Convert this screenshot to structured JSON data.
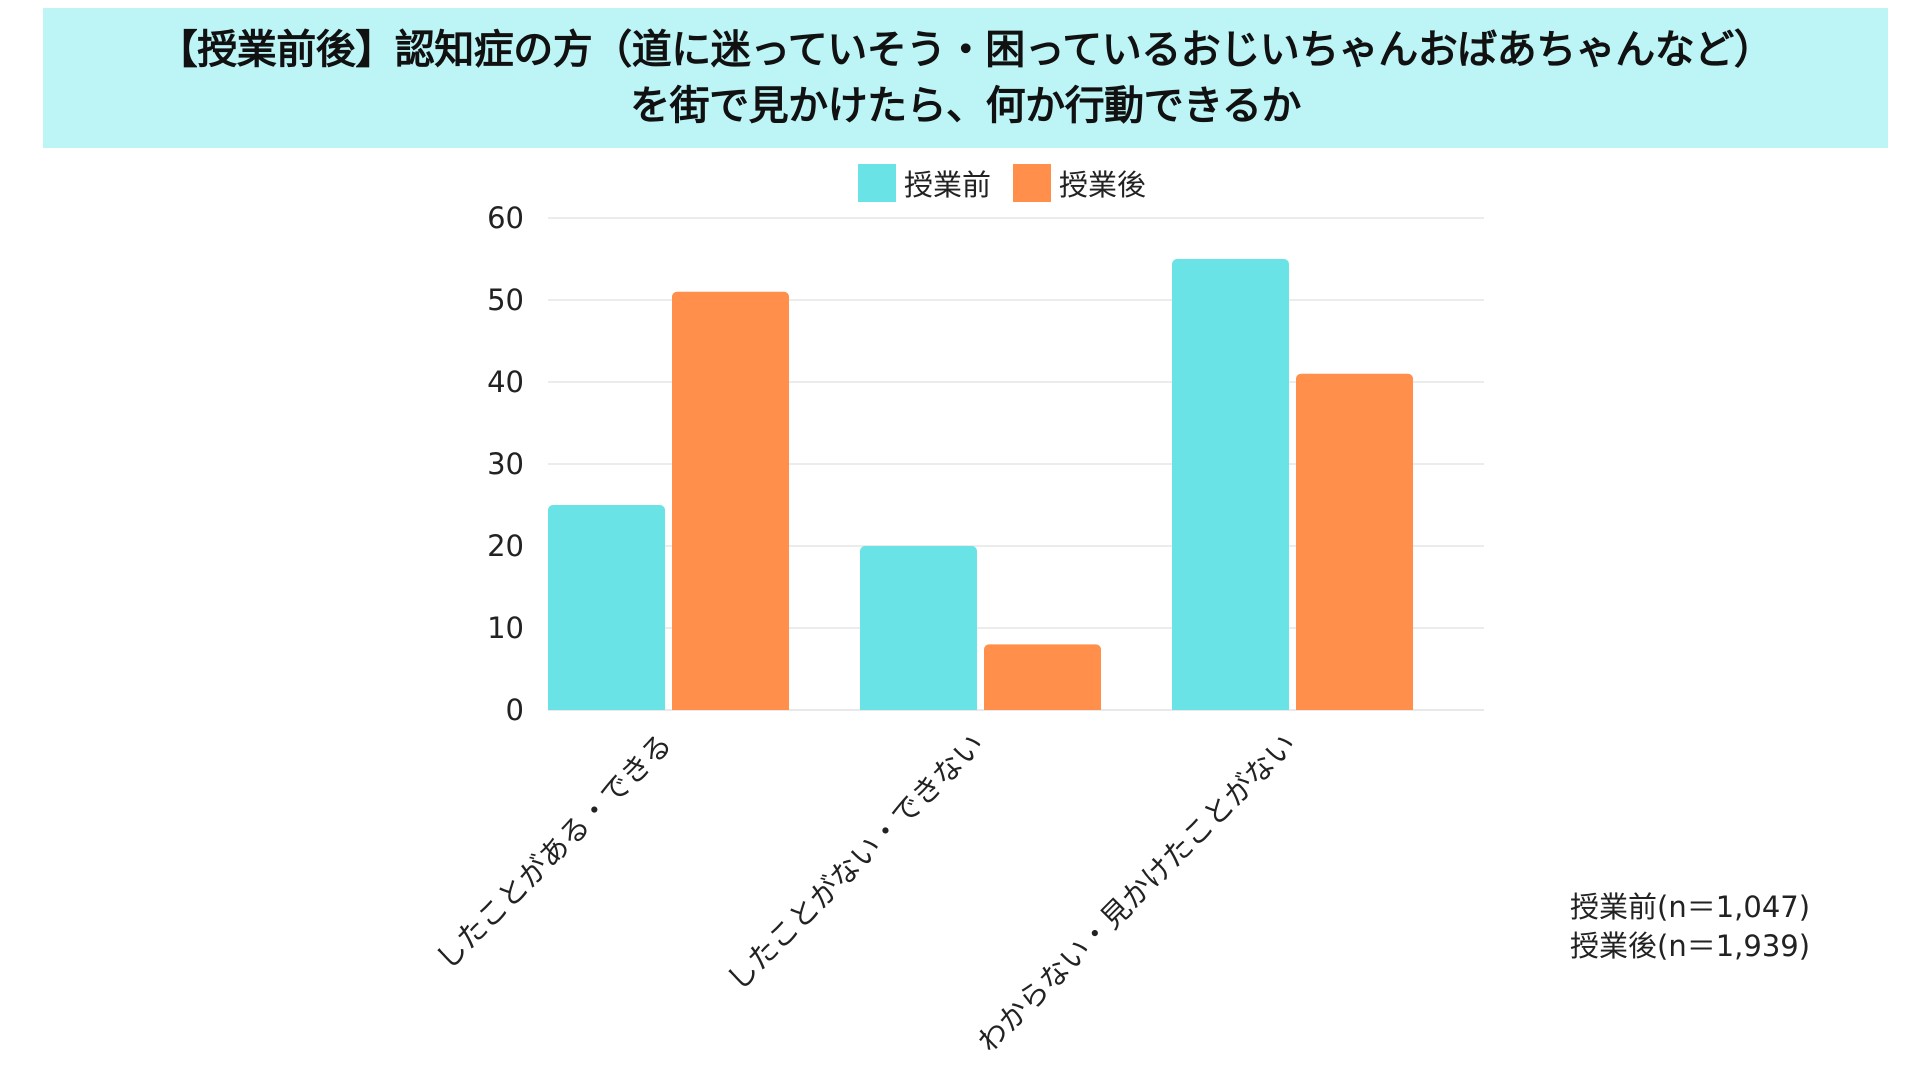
{
  "title": {
    "line1": "【授業前後】認知症の方（道に迷っていそう・困っているおじいちゃんおばあちゃんなど）",
    "line2": "を街で見かけたら、何か行動できるか"
  },
  "colors": {
    "banner_bg": "#bdf5f7",
    "before": "#6ae3e6",
    "after": "#ff8f4a",
    "grid": "#e6e6e6"
  },
  "legend": [
    {
      "label": "授業前",
      "color": "#6ae3e6"
    },
    {
      "label": "授業後",
      "color": "#ff8f4a"
    }
  ],
  "chart_data": {
    "type": "bar",
    "categories": [
      "したことがある・できる",
      "したことがない・できない",
      "わからない・見かけたことがない"
    ],
    "series": [
      {
        "name": "授業前",
        "values": [
          25,
          20,
          55
        ]
      },
      {
        "name": "授業後",
        "values": [
          51,
          8,
          41
        ]
      }
    ],
    "ylim": [
      0,
      60
    ],
    "yticks": [
      0,
      10,
      20,
      30,
      40,
      50,
      60
    ],
    "grid": true,
    "legend_position": "top-center"
  },
  "notes": {
    "before_n": "授業前(n＝1,047)",
    "after_n": "授業後(n＝1,939)"
  }
}
